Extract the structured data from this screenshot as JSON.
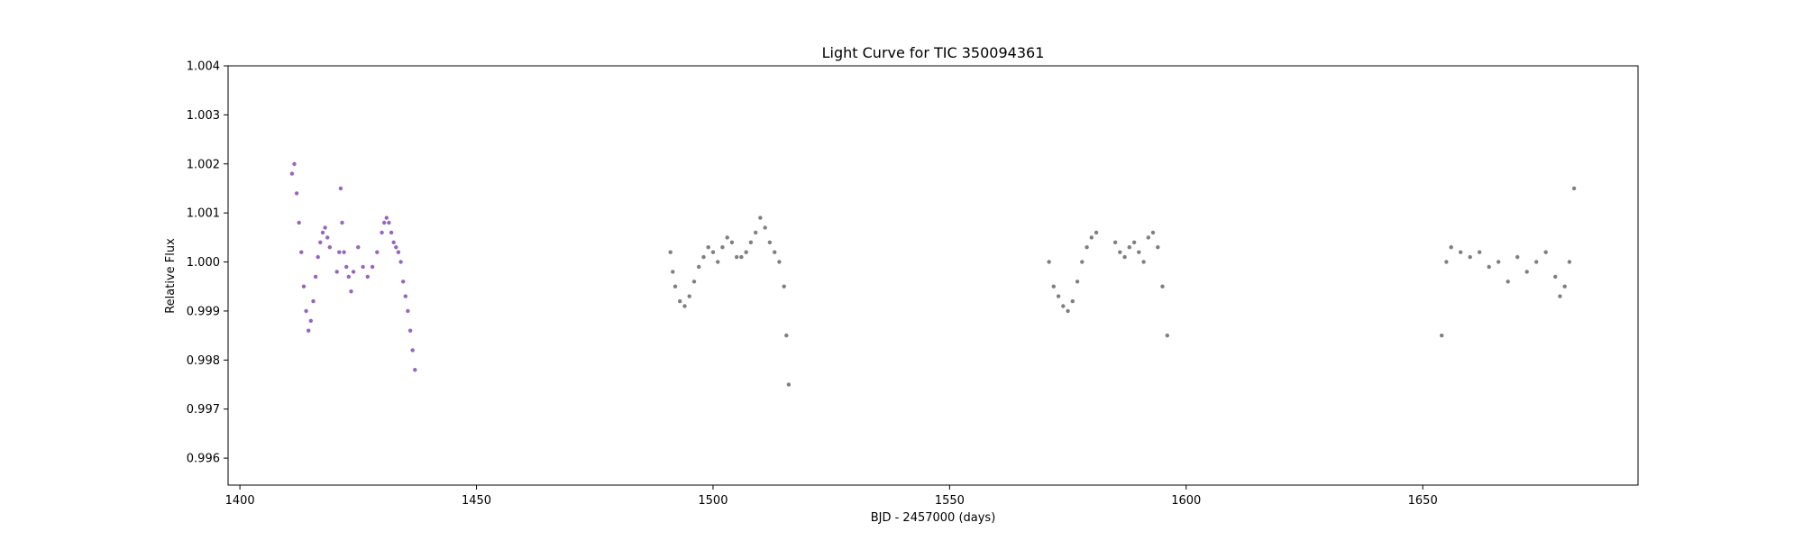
{
  "chart_data": {
    "type": "scatter",
    "title": "Light Curve for TIC 350094361",
    "xlabel": "BJD - 2457000 (days)",
    "ylabel": "Relative Flux",
    "xlim": [
      1397.5,
      1695.5
    ],
    "ylim": [
      0.99545,
      1.004
    ],
    "xticks": [
      1400,
      1450,
      1500,
      1550,
      1600,
      1650
    ],
    "xtick_labels": [
      "1400",
      "1450",
      "1500",
      "1550",
      "1600",
      "1650"
    ],
    "yticks": [
      0.996,
      0.997,
      0.998,
      0.999,
      1.0,
      1.001,
      1.002,
      1.003,
      1.004
    ],
    "ytick_labels": [
      "0.996",
      "0.997",
      "0.998",
      "0.999",
      "1.000",
      "1.001",
      "1.002",
      "1.003",
      "1.004"
    ],
    "grid": false,
    "series": [
      {
        "color": "#9467bd",
        "x": [
          1411.0,
          1411.5,
          1412.0,
          1412.5,
          1413.0,
          1413.5,
          1414.0,
          1414.5,
          1415.0,
          1415.5,
          1416.0,
          1416.5,
          1417.0,
          1417.5,
          1418.0,
          1418.5,
          1419.0,
          1420.5,
          1421.0,
          1421.3,
          1421.6,
          1422.0,
          1422.5,
          1423.0,
          1423.5,
          1424.0,
          1425.0,
          1426.0,
          1427.0,
          1428.0,
          1429.0,
          1430.0,
          1430.5,
          1431.0,
          1431.5,
          1432.0,
          1432.5,
          1433.0,
          1433.5,
          1434.0,
          1434.5,
          1435.0,
          1435.5,
          1436.0,
          1436.5,
          1437.0
        ],
        "y": [
          1.0018,
          1.002,
          1.0014,
          1.0008,
          1.0002,
          0.9995,
          0.999,
          0.9986,
          0.9988,
          0.9992,
          0.9997,
          1.0001,
          1.0004,
          1.0006,
          1.0007,
          1.0005,
          1.0003,
          0.9998,
          1.0002,
          1.0015,
          1.0008,
          1.0002,
          0.9999,
          0.9997,
          0.9994,
          0.9998,
          1.0003,
          0.9999,
          0.9997,
          0.9999,
          1.0002,
          1.0006,
          1.0008,
          1.0009,
          1.0008,
          1.0006,
          1.0004,
          1.0003,
          1.0002,
          1.0,
          0.9996,
          0.9993,
          0.999,
          0.9986,
          0.9982,
          0.9978
        ]
      },
      {
        "color": "#7f7f7f",
        "x": [
          1491.0,
          1491.5,
          1492.0,
          1493.0,
          1494.0,
          1495.0,
          1496.0,
          1497.0,
          1498.0,
          1499.0,
          1500.0,
          1501.0,
          1502.0,
          1503.0,
          1504.0,
          1505.0,
          1506.0,
          1507.0,
          1508.0,
          1509.0,
          1510.0,
          1511.0,
          1512.0,
          1513.0,
          1514.0,
          1515.0,
          1515.5,
          1516.0,
          1571.0,
          1572.0,
          1573.0,
          1574.0,
          1575.0,
          1576.0,
          1577.0,
          1578.0,
          1579.0,
          1580.0,
          1581.0,
          1585.0,
          1586.0,
          1587.0,
          1588.0,
          1589.0,
          1590.0,
          1591.0,
          1592.0,
          1593.0,
          1594.0,
          1595.0,
          1596.0,
          1654.0,
          1655.0,
          1656.0,
          1658.0,
          1660.0,
          1662.0,
          1664.0,
          1666.0,
          1668.0,
          1670.0,
          1672.0,
          1674.0,
          1676.0,
          1678.0,
          1679.0,
          1680.0,
          1681.0,
          1682.0
        ],
        "y": [
          1.0002,
          0.9998,
          0.9995,
          0.9992,
          0.9991,
          0.9993,
          0.9996,
          0.9999,
          1.0001,
          1.0003,
          1.0002,
          1.0,
          1.0003,
          1.0005,
          1.0004,
          1.0001,
          1.0001,
          1.0002,
          1.0004,
          1.0006,
          1.0009,
          1.0007,
          1.0004,
          1.0002,
          1.0,
          0.9995,
          0.9985,
          0.9975,
          1.0,
          0.9995,
          0.9993,
          0.9991,
          0.999,
          0.9992,
          0.9996,
          1.0,
          1.0003,
          1.0005,
          1.0006,
          1.0004,
          1.0002,
          1.0001,
          1.0003,
          1.0004,
          1.0002,
          1.0,
          1.0005,
          1.0006,
          1.0003,
          0.9995,
          0.9985,
          0.9985,
          1.0,
          1.0003,
          1.0002,
          1.0001,
          1.0002,
          0.9999,
          1.0,
          0.9996,
          1.0001,
          0.9998,
          1.0,
          1.0002,
          0.9997,
          0.9993,
          0.9995,
          1.0,
          1.0015
        ]
      }
    ]
  }
}
